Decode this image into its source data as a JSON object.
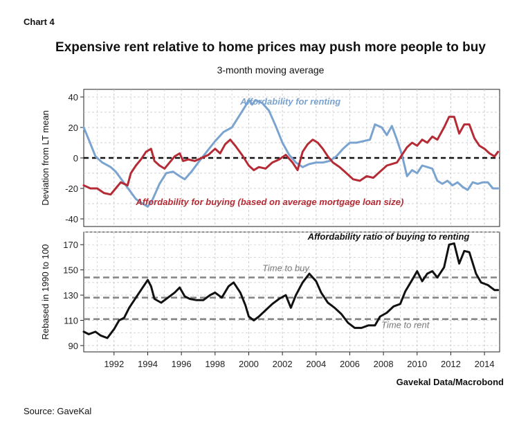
{
  "chart_label": "Chart 4",
  "title": "Expensive rent relative to home prices may push more people to buy",
  "subtitle": "3-month moving average",
  "source_right": "Gavekal Data/Macrobond",
  "source_left": "Source: GaveKal",
  "colors": {
    "renting": "#7aa3cf",
    "buying": "#b42b35",
    "ratio": "#111111",
    "threshold": "#888888",
    "zero": "#111111"
  },
  "chart_data": [
    {
      "type": "line",
      "ylabel": "Deviation from LT mean",
      "ylim": [
        -45,
        45
      ],
      "yticks": [
        40,
        20,
        0,
        -20,
        -40
      ],
      "xlim": [
        1990.2,
        2014.9
      ],
      "grid": true,
      "zero_line": true,
      "series": [
        {
          "name": "Affordability for renting",
          "color": "renting",
          "label_at": [
            1999.5,
            35
          ],
          "points": [
            [
              1990.2,
              20
            ],
            [
              1990.5,
              12
            ],
            [
              1990.9,
              1
            ],
            [
              1991.3,
              -3
            ],
            [
              1991.8,
              -6
            ],
            [
              1992.1,
              -9
            ],
            [
              1992.5,
              -15
            ],
            [
              1992.9,
              -21
            ],
            [
              1993.3,
              -27
            ],
            [
              1993.7,
              -30
            ],
            [
              1994.0,
              -32
            ],
            [
              1994.3,
              -27
            ],
            [
              1994.7,
              -17
            ],
            [
              1995.1,
              -10
            ],
            [
              1995.5,
              -9
            ],
            [
              1995.9,
              -12
            ],
            [
              1996.2,
              -14
            ],
            [
              1996.6,
              -9
            ],
            [
              1997.0,
              -3
            ],
            [
              1997.5,
              4
            ],
            [
              1998.0,
              11
            ],
            [
              1998.5,
              17
            ],
            [
              1999.0,
              20
            ],
            [
              1999.4,
              27
            ],
            [
              1999.8,
              34
            ],
            [
              2000.0,
              38
            ],
            [
              2000.2,
              35
            ],
            [
              2000.4,
              38
            ],
            [
              2000.8,
              36
            ],
            [
              2001.2,
              31
            ],
            [
              2001.6,
              21
            ],
            [
              2002.0,
              10
            ],
            [
              2002.4,
              2
            ],
            [
              2002.8,
              -3
            ],
            [
              2003.2,
              -6
            ],
            [
              2003.6,
              -4
            ],
            [
              2004.0,
              -3
            ],
            [
              2004.4,
              -3
            ],
            [
              2004.8,
              -2
            ],
            [
              2005.2,
              1
            ],
            [
              2005.6,
              6
            ],
            [
              2006.0,
              10
            ],
            [
              2006.4,
              10
            ],
            [
              2006.8,
              11
            ],
            [
              2007.2,
              12
            ],
            [
              2007.5,
              22
            ],
            [
              2007.9,
              20
            ],
            [
              2008.2,
              15
            ],
            [
              2008.5,
              21
            ],
            [
              2008.8,
              12
            ],
            [
              2009.1,
              2
            ],
            [
              2009.4,
              -12
            ],
            [
              2009.7,
              -8
            ],
            [
              2010.0,
              -10
            ],
            [
              2010.3,
              -5
            ],
            [
              2010.6,
              -6
            ],
            [
              2010.9,
              -7
            ],
            [
              2011.2,
              -15
            ],
            [
              2011.5,
              -17
            ],
            [
              2011.8,
              -15
            ],
            [
              2012.1,
              -18
            ],
            [
              2012.4,
              -16
            ],
            [
              2012.7,
              -19
            ],
            [
              2013.0,
              -21
            ],
            [
              2013.3,
              -16
            ],
            [
              2013.6,
              -17
            ],
            [
              2013.9,
              -16
            ],
            [
              2014.2,
              -16
            ],
            [
              2014.5,
              -20
            ],
            [
              2014.8,
              -20
            ]
          ]
        },
        {
          "name": "Affordability for buying (based on average mortgage loan size)",
          "color": "buying",
          "label_at": [
            1993.3,
            -31
          ],
          "points": [
            [
              1990.2,
              -18
            ],
            [
              1990.6,
              -20
            ],
            [
              1991.0,
              -20
            ],
            [
              1991.4,
              -23
            ],
            [
              1991.8,
              -24
            ],
            [
              1992.1,
              -20
            ],
            [
              1992.4,
              -16
            ],
            [
              1992.8,
              -18
            ],
            [
              1993.0,
              -10
            ],
            [
              1993.3,
              -5
            ],
            [
              1993.6,
              -1
            ],
            [
              1993.9,
              4
            ],
            [
              1994.2,
              6
            ],
            [
              1994.4,
              -2
            ],
            [
              1994.7,
              -5
            ],
            [
              1995.0,
              -7
            ],
            [
              1995.3,
              -3
            ],
            [
              1995.6,
              1
            ],
            [
              1995.9,
              3
            ],
            [
              1996.1,
              -2
            ],
            [
              1996.4,
              -1
            ],
            [
              1996.8,
              -2
            ],
            [
              1997.2,
              0
            ],
            [
              1997.6,
              2
            ],
            [
              1998.0,
              6
            ],
            [
              1998.3,
              3
            ],
            [
              1998.6,
              9
            ],
            [
              1998.9,
              12
            ],
            [
              1999.2,
              8
            ],
            [
              1999.6,
              2
            ],
            [
              2000.0,
              -5
            ],
            [
              2000.3,
              -8
            ],
            [
              2000.6,
              -6
            ],
            [
              2001.0,
              -7
            ],
            [
              2001.4,
              -3
            ],
            [
              2001.8,
              -1
            ],
            [
              2002.2,
              2
            ],
            [
              2002.6,
              -3
            ],
            [
              2002.9,
              -8
            ],
            [
              2003.2,
              4
            ],
            [
              2003.5,
              9
            ],
            [
              2003.8,
              12
            ],
            [
              2004.1,
              10
            ],
            [
              2004.4,
              6
            ],
            [
              2004.7,
              1
            ],
            [
              2005.0,
              -3
            ],
            [
              2005.4,
              -6
            ],
            [
              2005.8,
              -10
            ],
            [
              2006.2,
              -14
            ],
            [
              2006.6,
              -15
            ],
            [
              2007.0,
              -12
            ],
            [
              2007.4,
              -13
            ],
            [
              2007.8,
              -9
            ],
            [
              2008.2,
              -5
            ],
            [
              2008.5,
              -4
            ],
            [
              2008.8,
              -3
            ],
            [
              2009.1,
              2
            ],
            [
              2009.4,
              7
            ],
            [
              2009.7,
              10
            ],
            [
              2010.0,
              8
            ],
            [
              2010.3,
              12
            ],
            [
              2010.6,
              10
            ],
            [
              2010.9,
              14
            ],
            [
              2011.2,
              12
            ],
            [
              2011.6,
              20
            ],
            [
              2011.9,
              27
            ],
            [
              2012.2,
              27
            ],
            [
              2012.5,
              16
            ],
            [
              2012.8,
              22
            ],
            [
              2013.1,
              22
            ],
            [
              2013.4,
              13
            ],
            [
              2013.7,
              8
            ],
            [
              2014.0,
              6
            ],
            [
              2014.3,
              3
            ],
            [
              2014.6,
              1
            ],
            [
              2014.8,
              4
            ]
          ]
        }
      ]
    },
    {
      "type": "line",
      "ylabel": "Rebased in 1990 to 100",
      "ylim": [
        85,
        180
      ],
      "yticks": [
        170,
        150,
        130,
        110,
        90
      ],
      "xlim": [
        1990.2,
        2014.9
      ],
      "xticks": [
        "1992",
        "1994",
        "1996",
        "1998",
        "2000",
        "2002",
        "2004",
        "2006",
        "2008",
        "2010",
        "2012",
        "2014"
      ],
      "grid": true,
      "thresholds": [
        {
          "label": "Time to buy",
          "value": 144,
          "label_at": [
            2002.2,
            149
          ]
        },
        {
          "label": "",
          "value": 128
        },
        {
          "label": "Time to rent",
          "value": 111,
          "label_at": [
            2009.3,
            104
          ]
        }
      ],
      "series": [
        {
          "name": "Affordability ratio of buying to renting",
          "color": "ratio",
          "label_at": [
            2003.5,
            174
          ],
          "points": [
            [
              1990.2,
              101
            ],
            [
              1990.5,
              99
            ],
            [
              1990.9,
              101
            ],
            [
              1991.2,
              98
            ],
            [
              1991.6,
              96
            ],
            [
              1992.0,
              103
            ],
            [
              1992.3,
              110
            ],
            [
              1992.6,
              112
            ],
            [
              1992.9,
              120
            ],
            [
              1993.3,
              128
            ],
            [
              1993.7,
              136
            ],
            [
              1994.0,
              142
            ],
            [
              1994.2,
              137
            ],
            [
              1994.4,
              127
            ],
            [
              1994.8,
              124
            ],
            [
              1995.2,
              128
            ],
            [
              1995.6,
              132
            ],
            [
              1995.9,
              136
            ],
            [
              1996.2,
              129
            ],
            [
              1996.5,
              127
            ],
            [
              1996.9,
              126
            ],
            [
              1997.3,
              126
            ],
            [
              1997.7,
              130
            ],
            [
              1998.0,
              132
            ],
            [
              1998.4,
              128
            ],
            [
              1998.8,
              137
            ],
            [
              1999.1,
              140
            ],
            [
              1999.5,
              132
            ],
            [
              1999.8,
              122
            ],
            [
              2000.0,
              113
            ],
            [
              2000.3,
              110
            ],
            [
              2000.6,
              113
            ],
            [
              2001.0,
              118
            ],
            [
              2001.4,
              123
            ],
            [
              2001.8,
              127
            ],
            [
              2002.2,
              130
            ],
            [
              2002.5,
              120
            ],
            [
              2002.8,
              130
            ],
            [
              2003.2,
              140
            ],
            [
              2003.6,
              147
            ],
            [
              2004.0,
              141
            ],
            [
              2004.3,
              132
            ],
            [
              2004.7,
              124
            ],
            [
              2005.1,
              120
            ],
            [
              2005.5,
              115
            ],
            [
              2005.9,
              108
            ],
            [
              2006.3,
              104
            ],
            [
              2006.7,
              104
            ],
            [
              2007.1,
              106
            ],
            [
              2007.5,
              106
            ],
            [
              2007.8,
              113
            ],
            [
              2008.2,
              116
            ],
            [
              2008.6,
              121
            ],
            [
              2009.0,
              123
            ],
            [
              2009.3,
              133
            ],
            [
              2009.7,
              142
            ],
            [
              2010.0,
              149
            ],
            [
              2010.3,
              141
            ],
            [
              2010.6,
              147
            ],
            [
              2010.9,
              149
            ],
            [
              2011.2,
              144
            ],
            [
              2011.6,
              152
            ],
            [
              2011.9,
              170
            ],
            [
              2012.2,
              171
            ],
            [
              2012.5,
              155
            ],
            [
              2012.8,
              165
            ],
            [
              2013.1,
              164
            ],
            [
              2013.5,
              147
            ],
            [
              2013.8,
              140
            ],
            [
              2014.2,
              138
            ],
            [
              2014.6,
              134
            ],
            [
              2014.8,
              134
            ]
          ]
        }
      ]
    }
  ]
}
